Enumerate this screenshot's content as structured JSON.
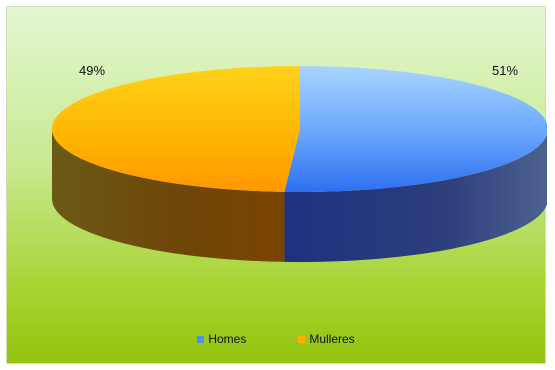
{
  "chart_data": {
    "type": "pie",
    "categories": [
      "Homes",
      "Mulleres"
    ],
    "values": [
      51,
      49
    ],
    "labels": [
      "51%",
      "49%"
    ],
    "colors": [
      "#4f8ff7",
      "#ffb000"
    ],
    "legend_position": "bottom",
    "style": "3d"
  }
}
